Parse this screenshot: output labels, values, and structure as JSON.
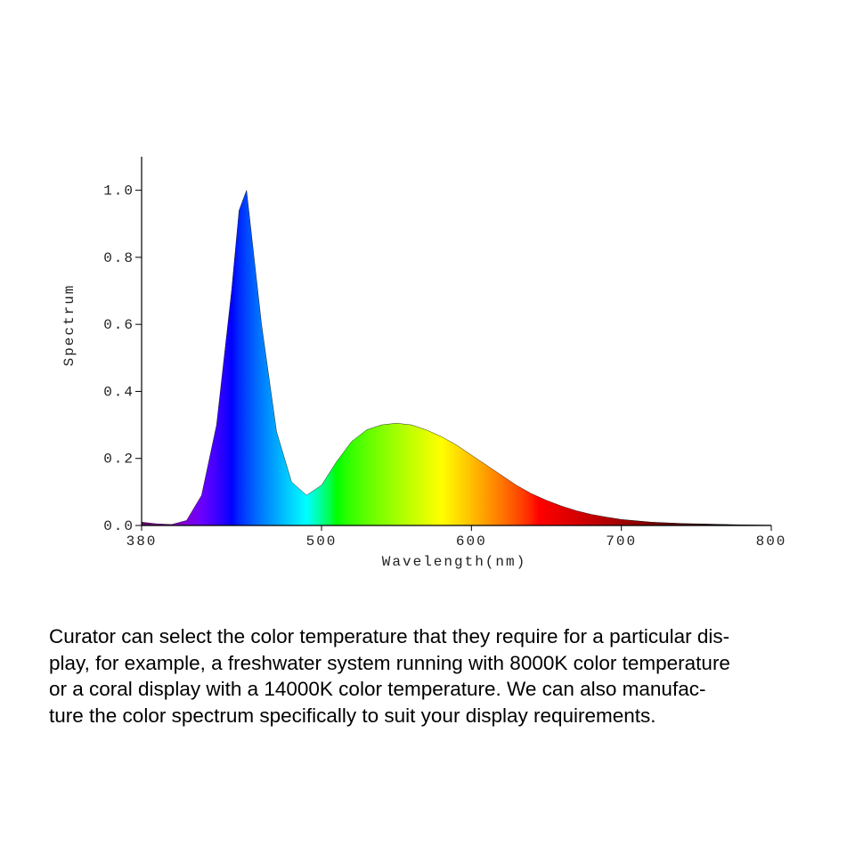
{
  "chart_data": {
    "type": "area",
    "x": [
      380,
      390,
      400,
      410,
      420,
      430,
      440,
      445,
      450,
      460,
      470,
      480,
      490,
      500,
      510,
      520,
      530,
      540,
      550,
      560,
      570,
      580,
      590,
      600,
      610,
      620,
      630,
      640,
      650,
      660,
      670,
      680,
      690,
      700,
      720,
      740,
      760,
      780,
      800
    ],
    "values": [
      0.01,
      0.005,
      0.003,
      0.015,
      0.09,
      0.3,
      0.7,
      0.94,
      1.0,
      0.6,
      0.28,
      0.13,
      0.09,
      0.12,
      0.19,
      0.25,
      0.285,
      0.3,
      0.305,
      0.3,
      0.285,
      0.265,
      0.24,
      0.21,
      0.18,
      0.15,
      0.12,
      0.095,
      0.075,
      0.058,
      0.044,
      0.033,
      0.025,
      0.018,
      0.01,
      0.006,
      0.004,
      0.002,
      0.001
    ],
    "xlabel": "Wavelength(nm)",
    "ylabel": "Spectrum",
    "xlim": [
      380,
      800
    ],
    "xticks": [
      380,
      500,
      600,
      700,
      800
    ],
    "ylim": [
      0,
      1.1
    ],
    "yticks": [
      {
        "value": 0,
        "label": "0.0"
      },
      0.2,
      0.4,
      0.6,
      0.8,
      {
        "value": 1,
        "label": "1.0"
      }
    ],
    "fill": "spectral"
  },
  "paragraph": {
    "lines": [
      "Curator can select the color temperature that they require for a particular dis-",
      "play, for example, a freshwater system running with 8000K color temperature",
      "or a coral display with a 14000K color temperature. We can also manufac-",
      "ture the color spectrum specifically to suit your display requirements."
    ]
  }
}
